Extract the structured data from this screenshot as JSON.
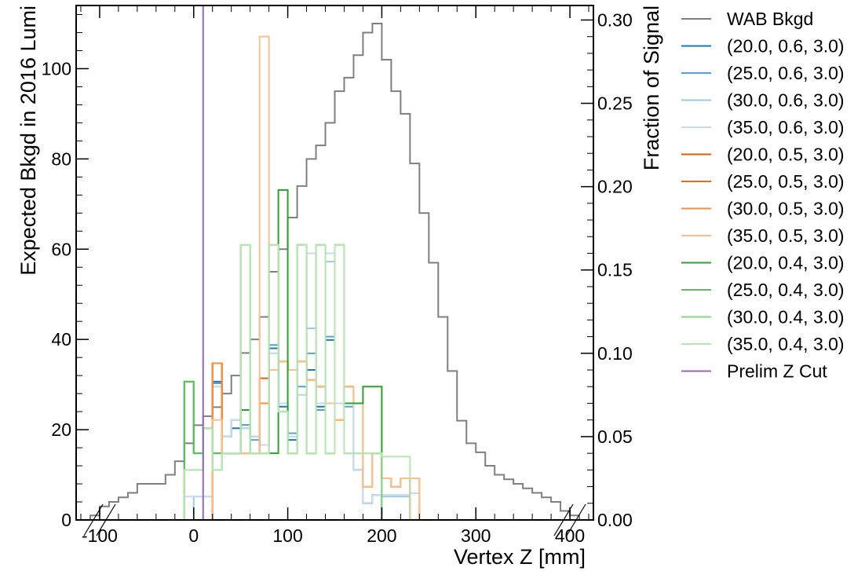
{
  "chart_data": {
    "type": "step-histogram",
    "xlabel": "Vertex Z [mm]",
    "ylabel": "Expected Bkgd in 2016 Lumi",
    "y2label": "Fraction of Signal",
    "xlim": [
      -125,
      425
    ],
    "ylim": [
      0,
      114
    ],
    "y2lim": [
      0,
      0.3087
    ],
    "x_ticks": [
      -100,
      0,
      100,
      200,
      300,
      400
    ],
    "y_ticks": [
      0,
      20,
      40,
      60,
      80,
      100
    ],
    "y2_ticks": [
      "0.00",
      "0.05",
      "0.10",
      "0.15",
      "0.20",
      "0.25",
      "0.30"
    ],
    "x_break": [
      -125,
      425
    ],
    "legend_placement": "outside-right",
    "bin_edges": [
      -110,
      -100,
      -90,
      -80,
      -70,
      -60,
      -50,
      -40,
      -30,
      -20,
      -10,
      0,
      10,
      20,
      30,
      40,
      50,
      60,
      70,
      80,
      90,
      100,
      110,
      120,
      130,
      140,
      150,
      160,
      170,
      180,
      190,
      200,
      210,
      220,
      230,
      240,
      250,
      260,
      270,
      280,
      290,
      300,
      310,
      320,
      330,
      340,
      350,
      360,
      370,
      380,
      390,
      400,
      410
    ],
    "series": [
      {
        "name": "WAB Bkgd",
        "axis": "left",
        "color": "#7f7f7f",
        "values": [
          1,
          3,
          4,
          5,
          6,
          8,
          8,
          8,
          10,
          13,
          17,
          21,
          23,
          25,
          28,
          32,
          37,
          40,
          45,
          55,
          60,
          67,
          74,
          80,
          83,
          88,
          95,
          98,
          103,
          108,
          110,
          102,
          95,
          90,
          79,
          68,
          57,
          45,
          33,
          22,
          17,
          15,
          12,
          10,
          9,
          8,
          7,
          6,
          5,
          4,
          2,
          1
        ]
      },
      {
        "name": "(20.0, 0.6, 3.0)",
        "axis": "right",
        "color": "#1f77b4",
        "bin_start": -10,
        "bin_width": 10,
        "values": [
          0,
          0,
          0,
          0.083,
          0.05,
          0.055,
          0.055,
          0.05,
          0.045,
          0.103,
          0.068,
          0.048,
          0.075,
          0.09,
          0.068,
          0.108,
          0.07,
          0.07,
          0.03,
          0.01,
          0.015,
          0,
          0,
          0,
          0
        ]
      },
      {
        "name": "(25.0, 0.6, 3.0)",
        "axis": "right",
        "color": "#56a0d8",
        "bin_start": -10,
        "bin_width": 10,
        "values": [
          0,
          0,
          0,
          0.082,
          0.05,
          0.06,
          0.057,
          0.048,
          0.045,
          0.105,
          0.07,
          0.052,
          0.08,
          0.1,
          0.066,
          0.11,
          0.07,
          0.068,
          0.03,
          0.01,
          0.015,
          0,
          0,
          0,
          0
        ]
      },
      {
        "name": "(30.0, 0.6, 3.0)",
        "axis": "right",
        "color": "#9ecae1",
        "bin_start": -10,
        "bin_width": 10,
        "values": [
          0,
          0.014,
          0.014,
          0.08,
          0.05,
          0.06,
          0.055,
          0.05,
          0.045,
          0.1,
          0.07,
          0.05,
          0.075,
          0.115,
          0.07,
          0.155,
          0.07,
          0.07,
          0.03,
          0.01,
          0.015,
          0.014,
          0.014,
          0.014,
          0
        ]
      },
      {
        "name": "(35.0, 0.6, 3.0)",
        "axis": "right",
        "color": "#c6dbef",
        "bin_start": -10,
        "bin_width": 10,
        "values": [
          0.014,
          0.014,
          0.014,
          0.08,
          0.05,
          0.06,
          0.055,
          0.05,
          0.045,
          0.1,
          0.07,
          0.05,
          0.075,
          0.16,
          0.07,
          0.16,
          0.07,
          0.07,
          0.03,
          0.01,
          0.015,
          0.015,
          0.015,
          0.015,
          0.016
        ]
      },
      {
        "name": "(20.0, 0.5, 3.0)",
        "axis": "right",
        "color": "#d95f02",
        "bin_start": -10,
        "bin_width": 10,
        "values": [
          0,
          0,
          0,
          0.094,
          0.04,
          0.04,
          0.04,
          0.04,
          0.085,
          0.09,
          0.095,
          0.09,
          0.095,
          0.084,
          0.08,
          0.07,
          0.06,
          0.08,
          0.07,
          0.02,
          0.04,
          0.025,
          0.02,
          0.025,
          0
        ]
      },
      {
        "name": "(25.0, 0.5, 3.0)",
        "axis": "right",
        "color": "#f16913",
        "bin_start": -10,
        "bin_width": 10,
        "values": [
          0,
          0,
          0,
          0.094,
          0.04,
          0.04,
          0.04,
          0.04,
          0.085,
          0.09,
          0.095,
          0.09,
          0.095,
          0.084,
          0.08,
          0.07,
          0.06,
          0.08,
          0.07,
          0.02,
          0.04,
          0.025,
          0.02,
          0.025,
          0
        ]
      },
      {
        "name": "(30.0, 0.5, 3.0)",
        "axis": "right",
        "color": "#fd8d3c",
        "bin_start": -10,
        "bin_width": 10,
        "values": [
          0,
          0,
          0,
          0.094,
          0.04,
          0.04,
          0.04,
          0.04,
          0.07,
          0.09,
          0.095,
          0.09,
          0.095,
          0.084,
          0.08,
          0.07,
          0.06,
          0.08,
          0.07,
          0.02,
          0.04,
          0.025,
          0.02,
          0.025,
          0.025
        ]
      },
      {
        "name": "(35.0, 0.5, 3.0)",
        "axis": "right",
        "color": "#fdc08a",
        "bin_start": -10,
        "bin_width": 10,
        "values": [
          0,
          0,
          0,
          0.06,
          0.04,
          0.04,
          0.04,
          0.04,
          0.29,
          0.09,
          0.095,
          0.09,
          0.095,
          0.084,
          0.08,
          0.07,
          0.06,
          0.08,
          0.07,
          0.02,
          0.04,
          0.025,
          0.02,
          0.025,
          0.025
        ]
      },
      {
        "name": "(20.0, 0.4, 3.0)",
        "axis": "right",
        "color": "#2ca02c",
        "bin_start": -10,
        "bin_width": 10,
        "values": [
          0.083,
          0.04,
          0.055,
          0.04,
          0.04,
          0.04,
          0.066,
          0.04,
          0.04,
          0.04,
          0.198,
          0.04,
          0.165,
          0.04,
          0.165,
          0.04,
          0.165,
          0.07,
          0.07,
          0.08,
          0.08,
          0,
          0,
          0,
          0
        ]
      },
      {
        "name": "(25.0, 0.4, 3.0)",
        "axis": "right",
        "color": "#5cbf5c",
        "bin_start": -10,
        "bin_width": 10,
        "values": [
          0.083,
          0.04,
          0.055,
          0.04,
          0.04,
          0.04,
          0.165,
          0.04,
          0.04,
          0.165,
          0.065,
          0.04,
          0.165,
          0.04,
          0.165,
          0.04,
          0.165,
          0.04,
          0.04,
          0.04,
          0.04,
          0,
          0,
          0,
          0
        ]
      },
      {
        "name": "(30.0, 0.4, 3.0)",
        "axis": "right",
        "color": "#8ed38e",
        "bin_start": -10,
        "bin_width": 10,
        "values": [
          0.03,
          0.03,
          0.055,
          0.03,
          0.04,
          0.04,
          0.165,
          0.04,
          0.04,
          0.165,
          0.065,
          0.04,
          0.165,
          0.04,
          0.165,
          0.04,
          0.165,
          0.04,
          0.04,
          0.04,
          0.04,
          0,
          0,
          0,
          0
        ]
      },
      {
        "name": "(35.0, 0.4, 3.0)",
        "axis": "right",
        "color": "#b8e6b2",
        "bin_start": -10,
        "bin_width": 10,
        "values": [
          0.03,
          0.03,
          0.055,
          0.03,
          0.04,
          0.04,
          0.165,
          0.04,
          0.04,
          0.165,
          0.065,
          0.04,
          0.165,
          0.04,
          0.165,
          0.04,
          0.165,
          0.04,
          0.04,
          0.04,
          0.04,
          0.038,
          0.038,
          0.038,
          0
        ]
      },
      {
        "name": "Prelim Z Cut",
        "axis": "left",
        "color": "#9467bd",
        "type": "vline",
        "x": 10
      }
    ]
  }
}
